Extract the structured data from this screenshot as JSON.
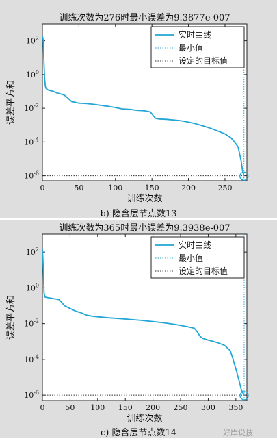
{
  "chart_data": [
    {
      "type": "line",
      "caption": "b) 隐含层节点数13",
      "title": "训练次数为276时最小误差为9.3877e-007",
      "xlabel": "训练次数",
      "ylabel": "误差平方和",
      "xlim": [
        0,
        280
      ],
      "xticks": [
        0,
        50,
        100,
        150,
        200,
        250
      ],
      "yscale": "log",
      "ylim": [
        5e-07,
        1000
      ],
      "yticks": [
        {
          "v": 100,
          "base": "10",
          "exp": "2"
        },
        {
          "v": 1,
          "base": "10",
          "exp": "0"
        },
        {
          "v": 0.01,
          "base": "10",
          "exp": "-2"
        },
        {
          "v": 0.0001,
          "base": "10",
          "exp": "-4"
        },
        {
          "v": 1e-06,
          "base": "10",
          "exp": "-6"
        }
      ],
      "legend_position": "top-right",
      "legend": [
        "实时曲线",
        "最小值",
        "设定的目标值"
      ],
      "colors": {
        "curve": "#23a6d5",
        "min_line": "#23a6d5",
        "goal_line": "#333333"
      },
      "goal": 1e-06,
      "min_point": {
        "x": 276,
        "y": 9.3877e-07
      },
      "series": [
        {
          "x": [
            0,
            1,
            2,
            3,
            4,
            5,
            8,
            15,
            20,
            25,
            30,
            35,
            40,
            50,
            60,
            70,
            80,
            90,
            100,
            110,
            120,
            130,
            140,
            148,
            152,
            155,
            160,
            170,
            180,
            190,
            200,
            210,
            220,
            230,
            240,
            250,
            258,
            263,
            268,
            270,
            272,
            274,
            276
          ],
          "y": [
            200,
            120,
            8,
            0.6,
            0.2,
            0.15,
            0.12,
            0.1,
            0.08,
            0.07,
            0.06,
            0.04,
            0.025,
            0.02,
            0.019,
            0.017,
            0.015,
            0.013,
            0.011,
            0.009,
            0.0085,
            0.0075,
            0.007,
            0.006,
            0.0035,
            0.0025,
            0.0023,
            0.0022,
            0.002,
            0.0018,
            0.0015,
            0.0012,
            0.0009,
            0.00065,
            0.00045,
            0.0003,
            0.00018,
            0.0001,
            5e-05,
            2e-05,
            8e-06,
            2e-06,
            9.3877e-07
          ]
        }
      ]
    },
    {
      "type": "line",
      "caption": "c) 隐含层节点数14",
      "title": "训练次数为365时最小误差为9.3938e-007",
      "xlabel": "训练次数",
      "ylabel": "误差平方和",
      "xlim": [
        0,
        370
      ],
      "xticks": [
        0,
        50,
        100,
        150,
        200,
        250,
        300,
        350
      ],
      "yscale": "log",
      "ylim": [
        5e-07,
        1000
      ],
      "yticks": [
        {
          "v": 100,
          "base": "10",
          "exp": "2"
        },
        {
          "v": 1,
          "base": "10",
          "exp": "0"
        },
        {
          "v": 0.01,
          "base": "10",
          "exp": "-2"
        },
        {
          "v": 0.0001,
          "base": "10",
          "exp": "-4"
        },
        {
          "v": 1e-06,
          "base": "10",
          "exp": "-6"
        }
      ],
      "legend_position": "top-right",
      "legend": [
        "实时曲线",
        "最小值",
        "设定的目标值"
      ],
      "colors": {
        "curve": "#23a6d5",
        "min_line": "#23a6d5",
        "goal_line": "#333333"
      },
      "goal": 1e-06,
      "min_point": {
        "x": 365,
        "y": 9.3938e-07
      },
      "series": [
        {
          "x": [
            0,
            1,
            2,
            3,
            5,
            10,
            20,
            30,
            35,
            40,
            50,
            60,
            70,
            80,
            90,
            100,
            120,
            140,
            160,
            180,
            200,
            220,
            240,
            260,
            275,
            280,
            285,
            290,
            300,
            310,
            320,
            330,
            340,
            345,
            350,
            355,
            360,
            365
          ],
          "y": [
            150,
            40,
            5,
            0.5,
            0.3,
            0.28,
            0.25,
            0.22,
            0.15,
            0.1,
            0.07,
            0.05,
            0.04,
            0.03,
            0.026,
            0.024,
            0.021,
            0.019,
            0.017,
            0.015,
            0.013,
            0.011,
            0.009,
            0.007,
            0.0055,
            0.0035,
            0.002,
            0.0015,
            0.0012,
            0.001,
            0.0008,
            0.0006,
            0.0003,
            0.0001,
            3e-05,
            8e-06,
            2e-06,
            9.3938e-07
          ]
        }
      ]
    }
  ],
  "watermark": "好岸说技"
}
